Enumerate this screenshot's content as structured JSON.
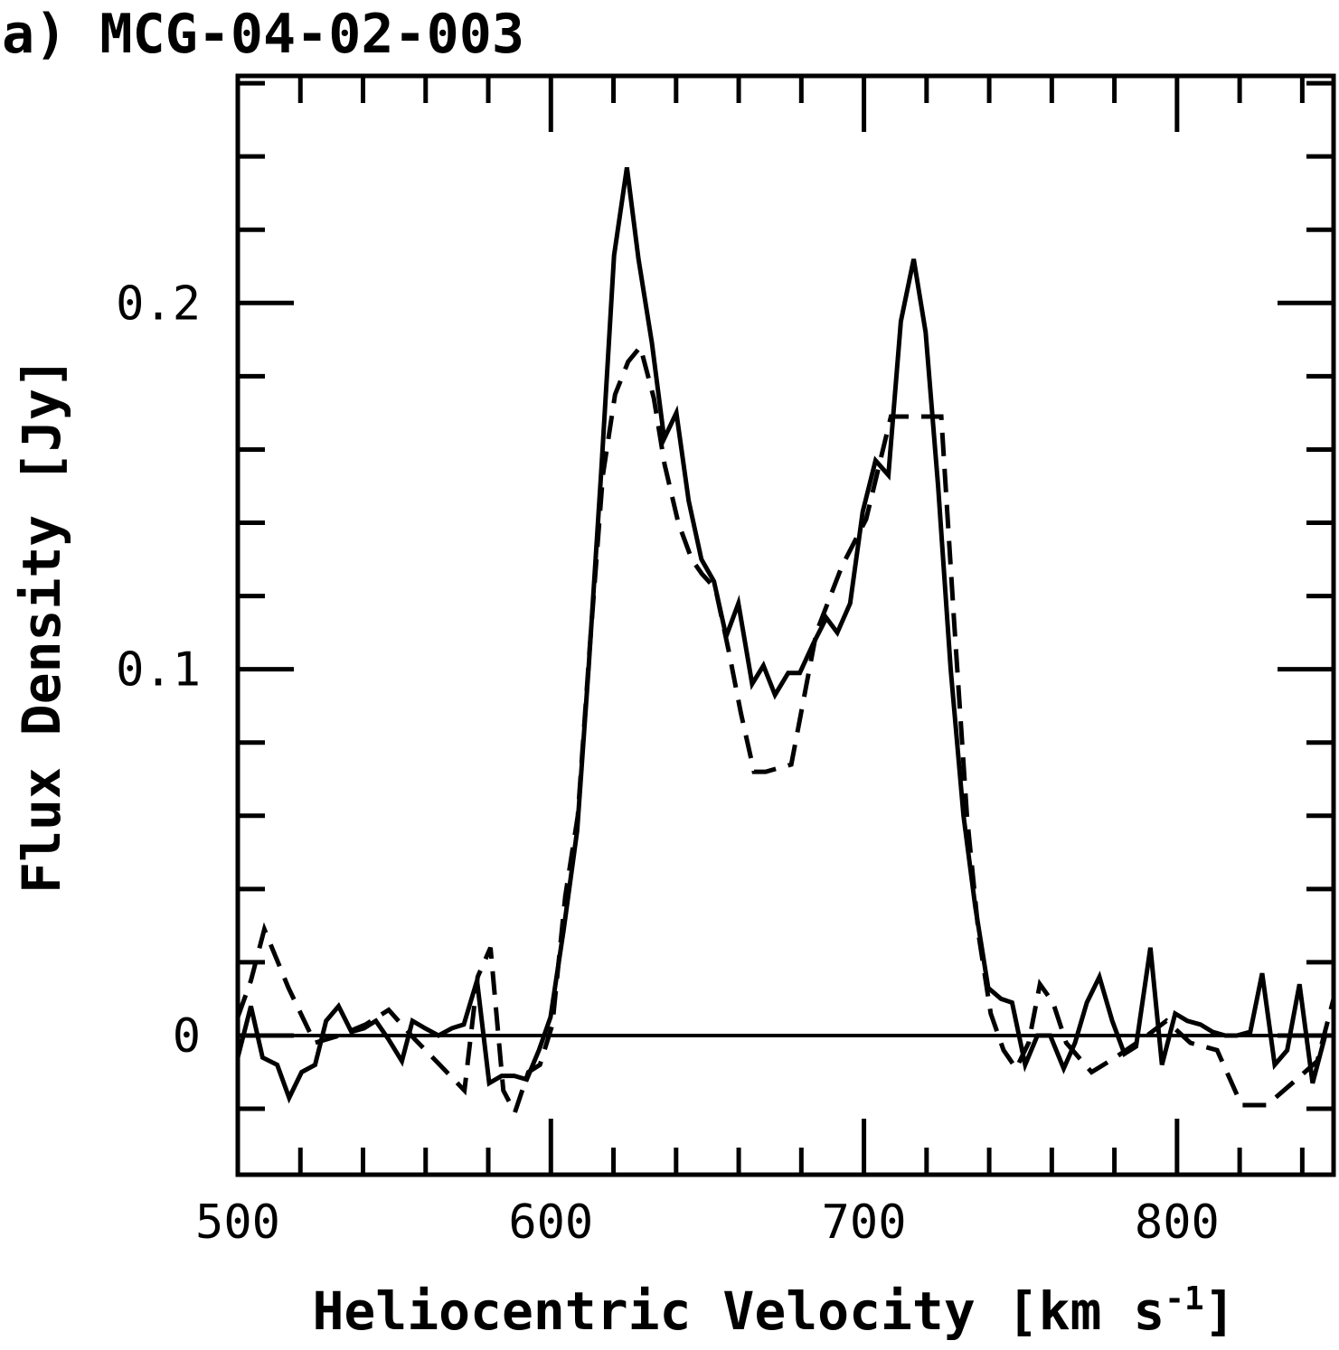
{
  "chart_data": {
    "type": "line",
    "title": "a) MCG-04-02-003",
    "xlabel": "Heliocentric Velocity [km s",
    "xlabel_sup": "-1",
    "xlabel_end": "]",
    "ylabel": "Flux Density [Jy]",
    "xlim": [
      500,
      850
    ],
    "ylim": [
      -0.038,
      0.262
    ],
    "x_ticks": [
      500,
      600,
      700,
      800
    ],
    "x_tick_labels": [
      "500",
      "600",
      "700",
      "800"
    ],
    "y_ticks": [
      0,
      0.1,
      0.2
    ],
    "y_tick_labels": [
      "0",
      "0.1",
      "0.2"
    ],
    "zero_line": 0,
    "grid": false,
    "series": [
      {
        "name": "solid",
        "style": "solid",
        "x": [
          500.0,
          504.2,
          507.9,
          512.6,
          516.4,
          520.4,
          524.7,
          528.2,
          532.2,
          536.3,
          540.3,
          544.1,
          548.1,
          552.4,
          555.8,
          559.8,
          564.1,
          568.4,
          572.2,
          576.4,
          580.3,
          584.3,
          588.3,
          592.3,
          596.2,
          599.9,
          604.1,
          608.4,
          612.1,
          616.1,
          620.2,
          624.3,
          628.0,
          632.3,
          636.2,
          640.1,
          644.0,
          648.1,
          652.1,
          656.0,
          659.9,
          664.3,
          667.9,
          671.6,
          675.8,
          679.5,
          683.8,
          688.0,
          691.5,
          695.6,
          699.6,
          703.7,
          707.8,
          711.8,
          715.9,
          719.7,
          723.7,
          727.7,
          731.8,
          735.6,
          739.7,
          743.8,
          747.3,
          751.5,
          755.4,
          759.5,
          763.8,
          767.4,
          771.2,
          775.2,
          779.3,
          783.2,
          786.9,
          791.5,
          795.2,
          799.4,
          803.3,
          807.5,
          811.3,
          815.4,
          819.1,
          823.4,
          827.2,
          831.2,
          835.2,
          839.1,
          843.3,
          847.3,
          850.0
        ],
        "y": [
          -0.006,
          0.008,
          -0.006,
          -0.008,
          -0.017,
          -0.01,
          -0.008,
          0.004,
          0.008,
          0.001,
          0.002,
          0.004,
          -0.001,
          -0.007,
          0.004,
          0.002,
          0.0,
          0.002,
          0.003,
          0.015,
          -0.013,
          -0.011,
          -0.011,
          -0.012,
          -0.004,
          0.005,
          0.029,
          0.056,
          0.101,
          0.154,
          0.213,
          0.237,
          0.212,
          0.189,
          0.163,
          0.17,
          0.146,
          0.13,
          0.124,
          0.109,
          0.118,
          0.096,
          0.101,
          0.093,
          0.099,
          0.099,
          0.107,
          0.114,
          0.11,
          0.118,
          0.143,
          0.157,
          0.153,
          0.195,
          0.212,
          0.192,
          0.15,
          0.1,
          0.06,
          0.035,
          0.013,
          0.01,
          0.009,
          -0.008,
          0.0,
          0.0,
          -0.009,
          -0.002,
          0.009,
          0.016,
          0.004,
          -0.005,
          -0.003,
          0.024,
          -0.008,
          0.006,
          0.004,
          0.003,
          0.001,
          0.0,
          0.0,
          0.001,
          0.017,
          -0.008,
          -0.004,
          0.014,
          -0.013,
          0.0,
          0.0
        ]
      },
      {
        "name": "dashed",
        "style": "dashed",
        "x": [
          500.0,
          504.2,
          508.5,
          516.2,
          524.6,
          532.4,
          540.8,
          548.2,
          556.5,
          564.5,
          572.4,
          576.6,
          580.7,
          584.8,
          588.5,
          592.8,
          596.5,
          600.5,
          604.6,
          608.6,
          612.6,
          616.6,
          620.5,
          624.7,
          628.6,
          632.9,
          636.3,
          640.7,
          645.0,
          648.3,
          652.6,
          656.8,
          660.7,
          664.9,
          668.6,
          676.8,
          684.8,
          692.9,
          700.7,
          708.6,
          716.9,
          724.7,
          728.8,
          732.9,
          736.7,
          740.5,
          744.6,
          748.6,
          752.6,
          756.2,
          760.4,
          764.6,
          772.7,
          780.3,
          788.9,
          796.6,
          804.3,
          812.8,
          820.6,
          828.7,
          836.8,
          844.8,
          850.0
        ],
        "y": [
          0.005,
          0.015,
          0.029,
          0.013,
          -0.002,
          0.0,
          0.003,
          0.007,
          -0.001,
          -0.008,
          -0.015,
          0.016,
          0.024,
          -0.015,
          -0.021,
          -0.01,
          -0.008,
          0.003,
          0.038,
          0.06,
          0.108,
          0.153,
          0.175,
          0.184,
          0.188,
          0.174,
          0.156,
          0.14,
          0.13,
          0.126,
          0.122,
          0.105,
          0.088,
          0.072,
          0.072,
          0.074,
          0.11,
          0.128,
          0.141,
          0.169,
          0.169,
          0.169,
          0.113,
          0.06,
          0.027,
          0.006,
          -0.004,
          -0.009,
          -0.002,
          0.014,
          0.009,
          -0.002,
          -0.01,
          -0.006,
          -0.001,
          0.004,
          -0.002,
          -0.004,
          -0.019,
          -0.019,
          -0.013,
          -0.007,
          0.01
        ]
      }
    ]
  }
}
